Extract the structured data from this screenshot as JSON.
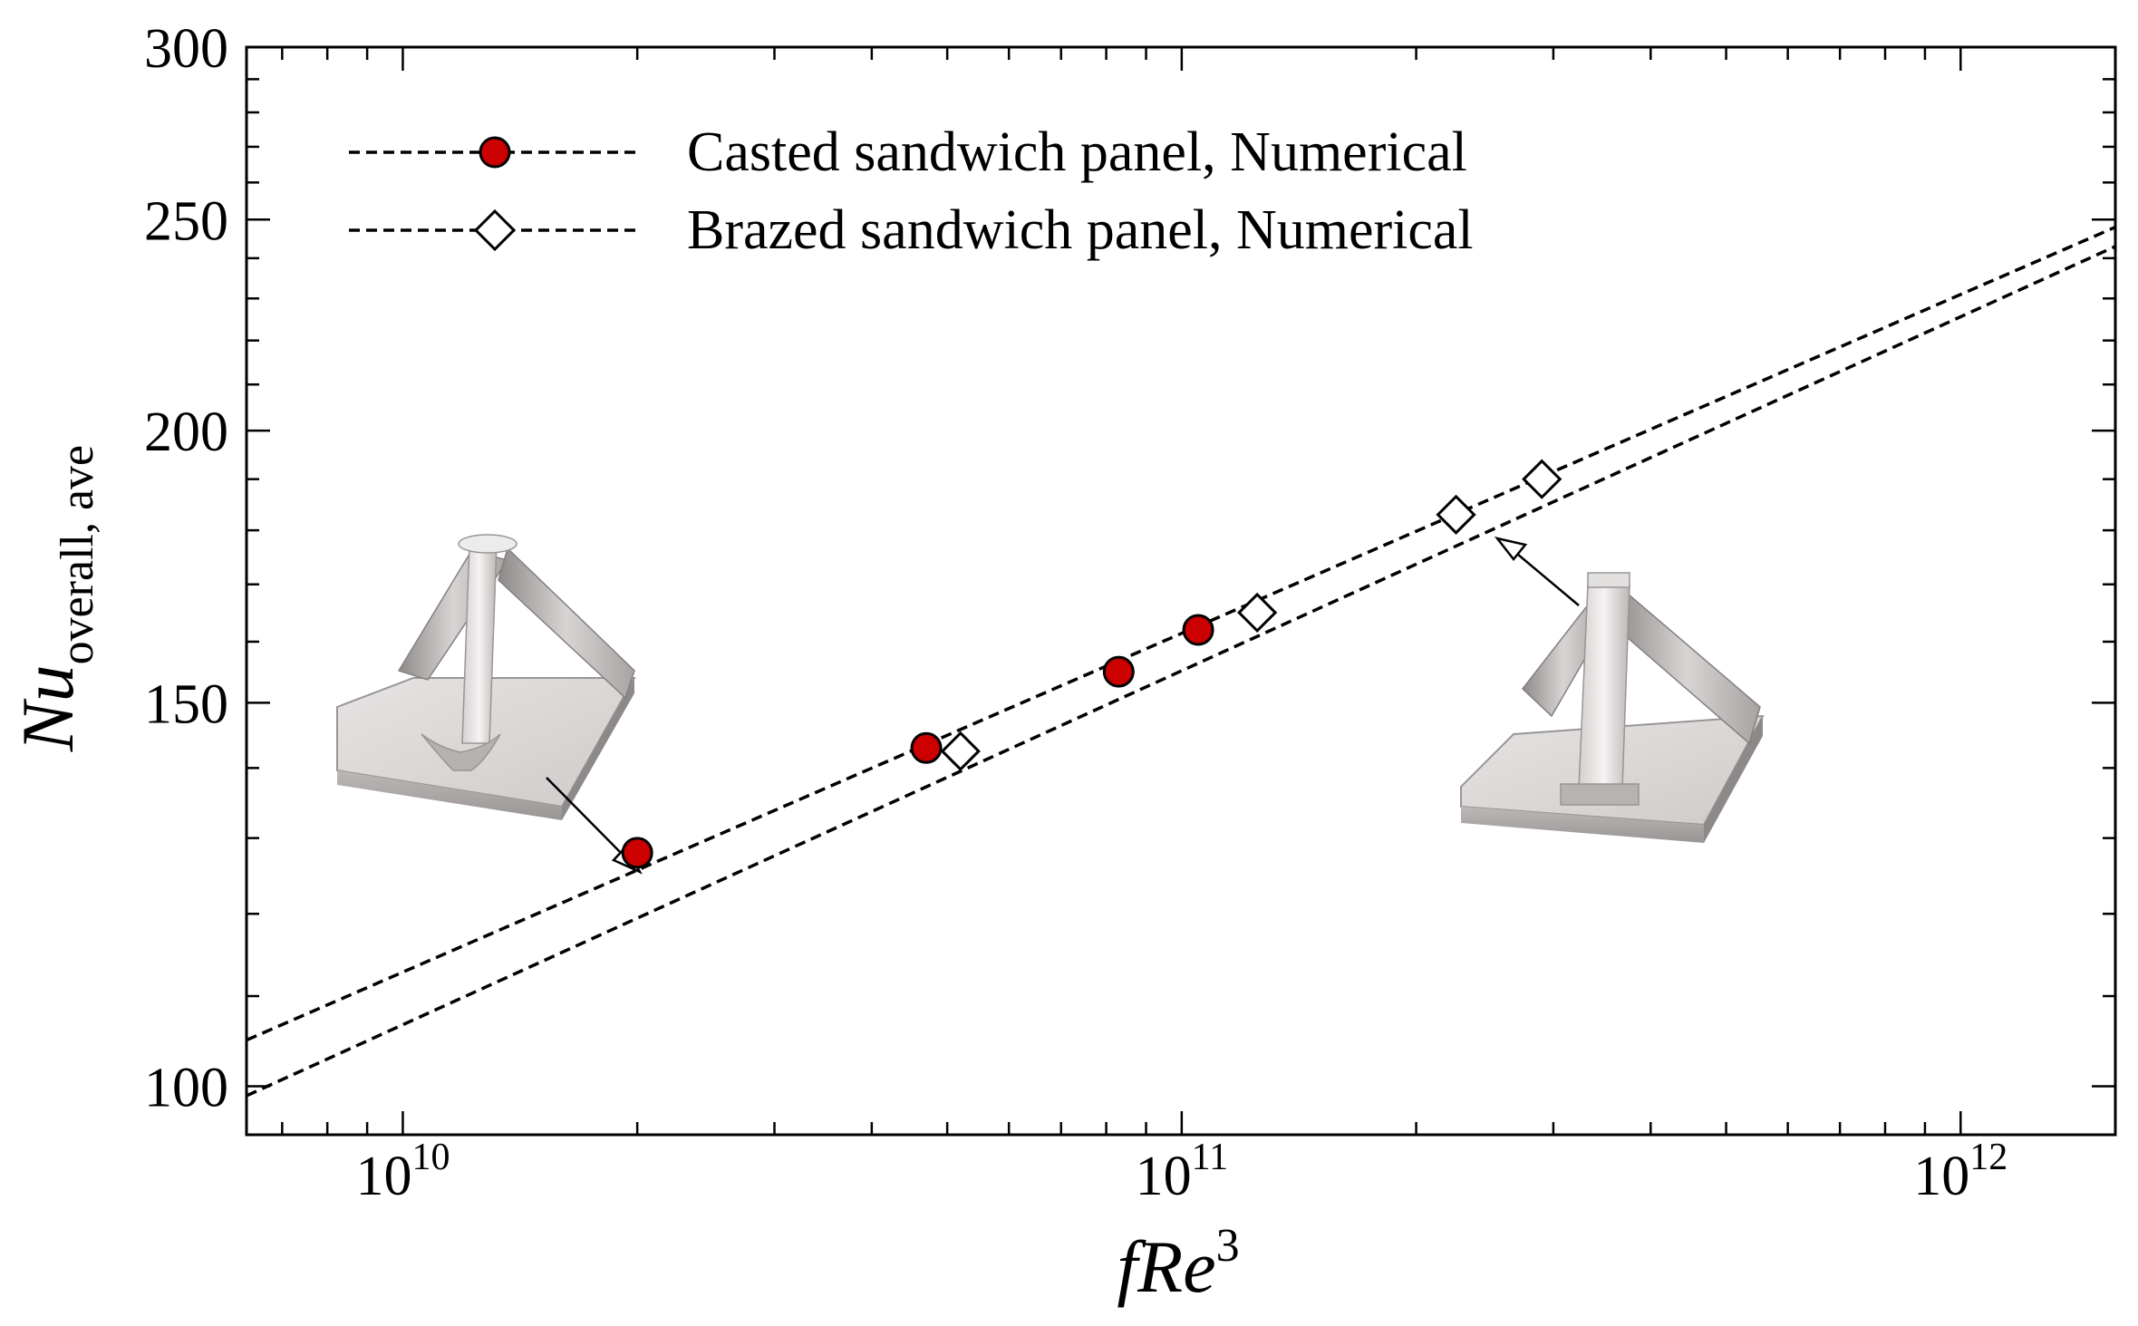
{
  "chart_data": {
    "type": "scatter",
    "xlabel": {
      "main": "fRe",
      "sup": "3"
    },
    "ylabel": {
      "main": "Nu",
      "sub": "overall, ave"
    },
    "xscale": "log",
    "yscale": "log",
    "xlim": [
      6300000000.0,
      1580000000000.0
    ],
    "ylim": [
      95,
      300
    ],
    "x_ticks": [
      {
        "value": 10000000000.0,
        "base": "10",
        "exp": "10"
      },
      {
        "value": 100000000000.0,
        "base": "10",
        "exp": "11"
      },
      {
        "value": 1000000000000.0,
        "base": "10",
        "exp": "12"
      }
    ],
    "y_ticks": [
      {
        "value": 100,
        "label": "100"
      },
      {
        "value": 150,
        "label": "150"
      },
      {
        "value": 200,
        "label": "200"
      },
      {
        "value": 250,
        "label": "250"
      },
      {
        "value": 300,
        "label": "300"
      }
    ],
    "legend_position": "top-left",
    "series": [
      {
        "name": "Casted sandwich panel, Numerical",
        "marker": "circle",
        "color": "#cc0000",
        "x": [
          20000000000.0,
          47000000000.0,
          83000000000.0,
          105000000000.0
        ],
        "y": [
          128,
          143,
          155,
          162
        ],
        "fit": {
          "x": [
            6300000000.0,
            1580000000000.0
          ],
          "y": [
            105,
            248
          ]
        }
      },
      {
        "name": "Brazed sandwich panel, Numerical",
        "marker": "diamond",
        "color": "#ffffff",
        "x": [
          52000000000.0,
          125000000000.0,
          225000000000.0,
          290000000000.0
        ],
        "y": [
          142.5,
          165,
          183,
          190
        ],
        "fit": {
          "x": [
            6300000000.0,
            1580000000000.0
          ],
          "y": [
            99,
            243
          ]
        }
      }
    ]
  }
}
